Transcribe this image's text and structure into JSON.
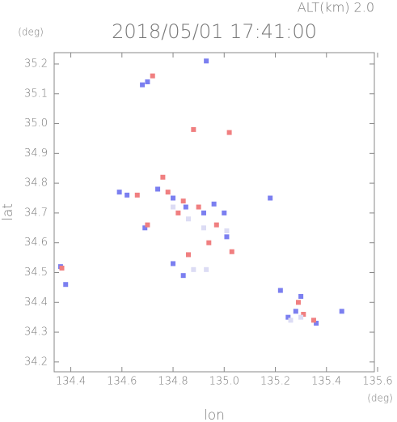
{
  "chart_data": {
    "type": "scatter",
    "title": "2018/05/01 17:41:00",
    "subtitle": "ALT(km) 2.0",
    "x_label": "lon",
    "y_label": "lat",
    "x_unit": "(deg)",
    "y_unit": "(deg)",
    "xlim": [
      134.335,
      135.6
    ],
    "ylim": [
      34.167,
      35.238
    ],
    "xticks": [
      134.4,
      134.6,
      134.8,
      {
        "value": 135.0,
        "label": "135.0"
      },
      135.2,
      135.4,
      135.6
    ],
    "yticks": [
      34.2,
      34.3,
      34.4,
      34.5,
      34.6,
      34.7,
      34.8,
      34.9,
      {
        "value": 35.0,
        "label": "35.0"
      },
      35.1,
      35.2
    ],
    "series": [
      {
        "color": "#7b7ff0",
        "x": [
          134.68,
          134.7,
          134.93,
          134.38,
          134.36,
          134.59,
          134.62,
          134.8,
          134.85,
          134.92,
          134.96,
          135.18,
          135.0,
          134.84,
          134.8,
          134.69,
          135.28,
          135.25,
          135.3,
          135.36,
          135.46,
          135.22,
          134.74,
          135.01
        ],
        "values": [
          35.13,
          35.14,
          35.21,
          34.46,
          34.52,
          34.77,
          34.76,
          34.75,
          34.72,
          34.7,
          34.73,
          34.75,
          34.7,
          34.49,
          34.53,
          34.65,
          34.37,
          34.35,
          34.42,
          34.33,
          34.37,
          34.44,
          34.78,
          34.62
        ]
      },
      {
        "color": "#f07f80",
        "x": [
          134.72,
          134.88,
          135.02,
          134.66,
          134.76,
          134.78,
          134.84,
          134.9,
          134.97,
          134.94,
          134.7,
          134.86,
          135.29,
          135.31,
          135.35,
          134.365,
          135.03,
          134.82
        ],
        "values": [
          35.16,
          34.98,
          34.97,
          34.76,
          34.82,
          34.77,
          34.74,
          34.72,
          34.66,
          34.6,
          34.66,
          34.56,
          34.4,
          34.36,
          34.34,
          34.515,
          34.57,
          34.7
        ]
      },
      {
        "color": "#dcdcf4",
        "x": [
          134.88,
          134.93,
          135.26,
          135.3,
          135.01,
          134.92,
          134.8,
          134.86
        ],
        "values": [
          34.51,
          34.51,
          34.34,
          34.35,
          34.64,
          34.65,
          34.72,
          34.68
        ]
      }
    ]
  }
}
